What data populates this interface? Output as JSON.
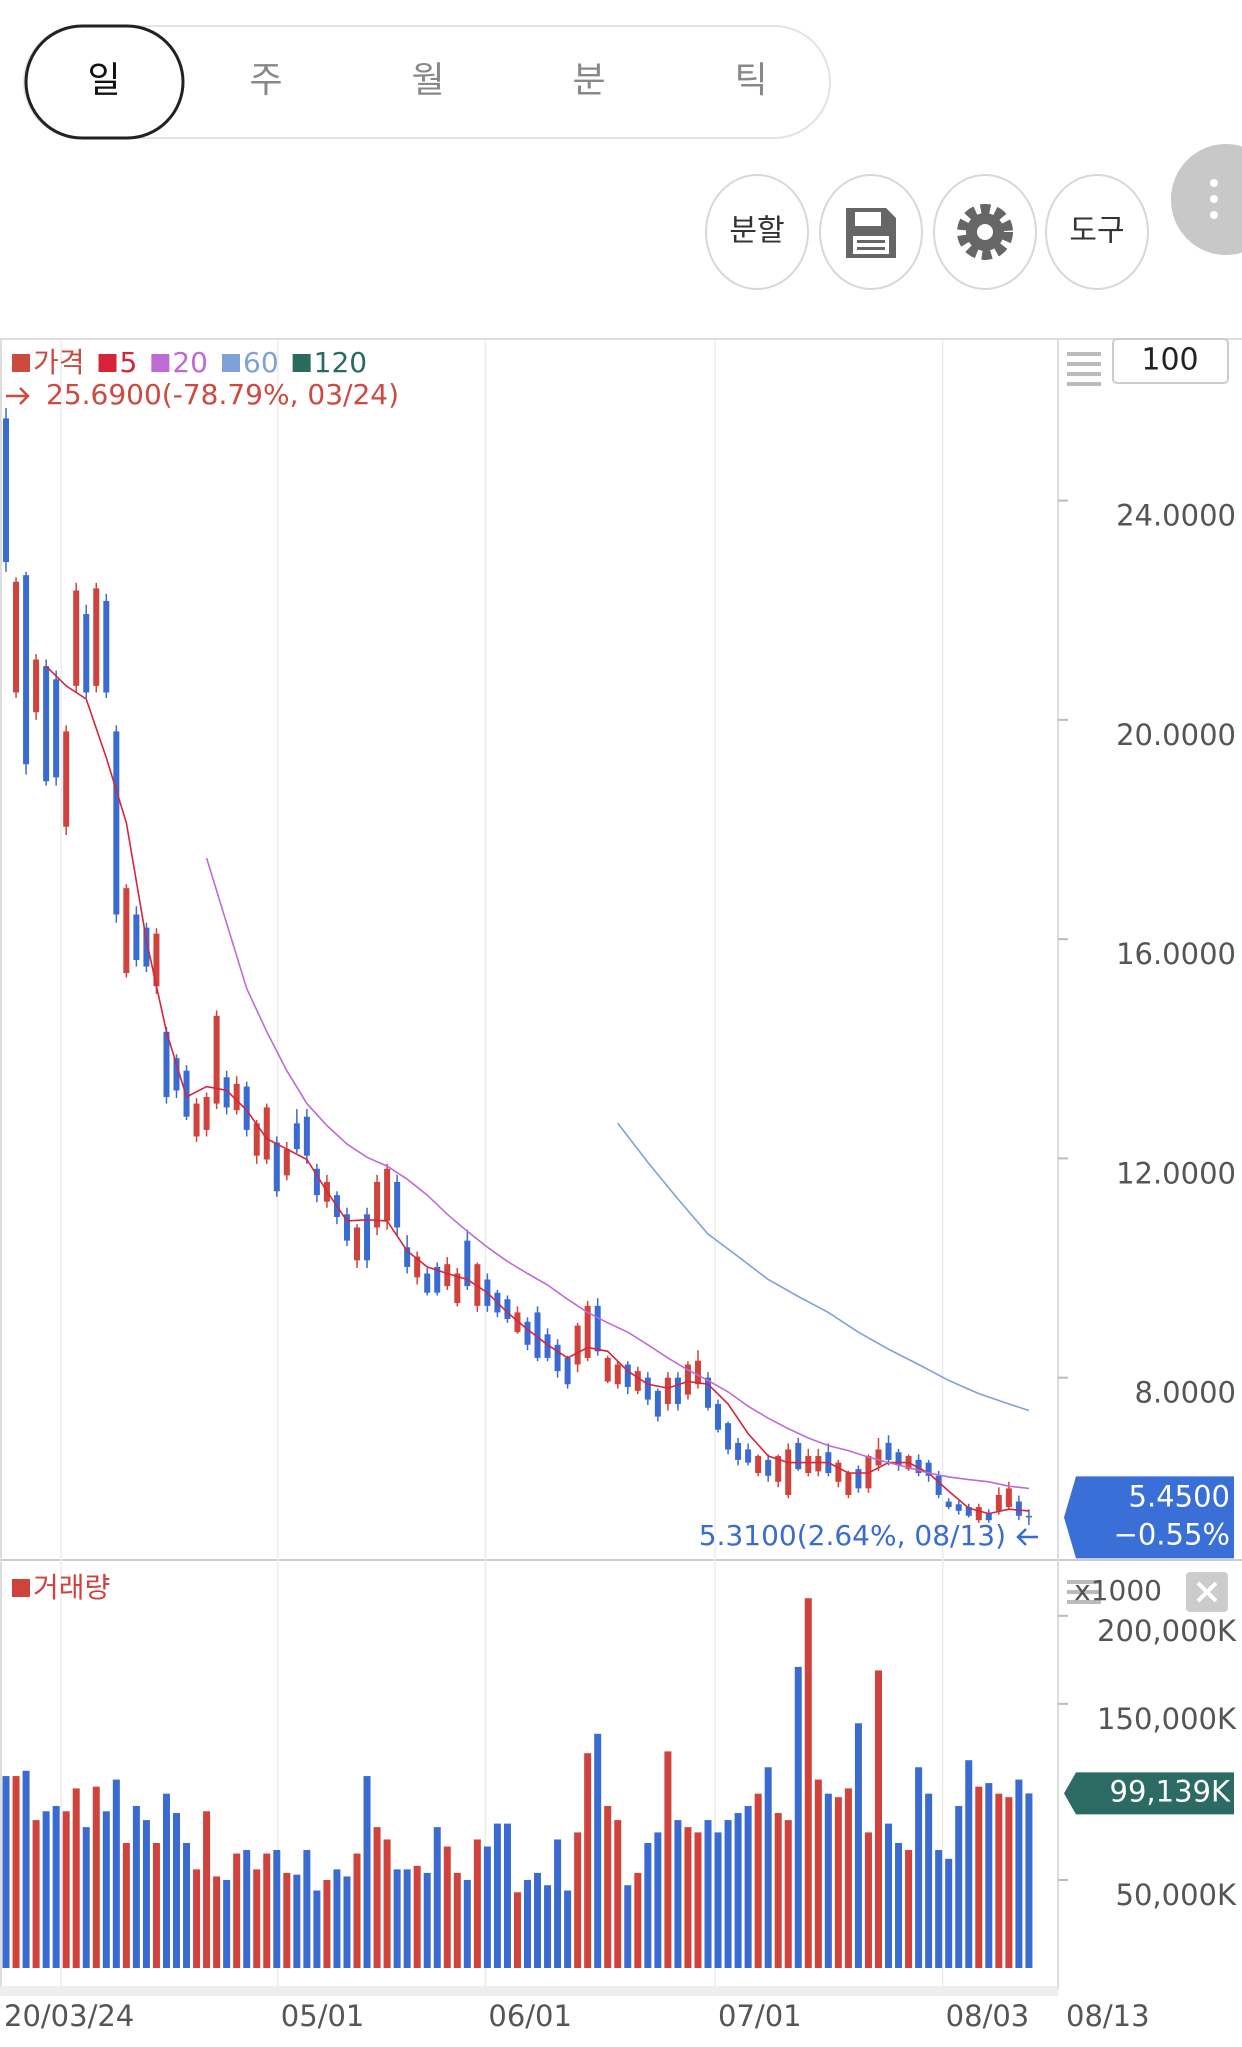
{
  "tabs": [
    "일",
    "주",
    "월",
    "분",
    "틱"
  ],
  "buttons": [
    "분할",
    "도구"
  ],
  "zoom_box": "100",
  "chart_data": [
    {
      "type": "candlestick",
      "series_name": "가격",
      "price_color": "#cc4a3f",
      "up_color": "#d0433c",
      "down_color": "#3a6bd1",
      "annotations": [
        "25.6900(-78.79%, 03/24)",
        "5.3100(2.64%, 08/13)"
      ],
      "current_price": {
        "value": 5.45,
        "label": "5.4500"
      },
      "current_change": "−0.55%",
      "current_color": "#3a6fd8",
      "xlim": [
        -0.6,
        104.9
      ],
      "ylim": [
        4.71,
        26.93
      ],
      "yticks": [
        {
          "value": 8,
          "label": "8.0000"
        },
        {
          "value": 12,
          "label": "12.0000"
        },
        {
          "value": 16,
          "label": "16.0000"
        },
        {
          "value": 20,
          "label": "20.0000"
        },
        {
          "value": 24,
          "label": "24.0000"
        }
      ],
      "ohlc": [
        [
          25.5,
          25.69,
          22.7,
          22.88
        ],
        [
          20.5,
          22.6,
          20.4,
          22.52
        ],
        [
          22.64,
          22.7,
          19.0,
          19.19
        ],
        [
          20.14,
          21.2,
          20.0,
          21.1
        ],
        [
          20.98,
          21.1,
          18.8,
          18.88
        ],
        [
          20.74,
          20.9,
          18.8,
          18.95
        ],
        [
          18.05,
          19.9,
          17.9,
          19.79
        ],
        [
          20.62,
          22.5,
          20.5,
          22.36
        ],
        [
          21.93,
          22.1,
          20.4,
          20.5
        ],
        [
          20.62,
          22.5,
          20.5,
          22.4
        ],
        [
          22.17,
          22.3,
          20.4,
          20.5
        ],
        [
          19.79,
          19.9,
          16.3,
          16.45
        ],
        [
          15.38,
          17.0,
          15.3,
          16.93
        ],
        [
          16.45,
          16.6,
          15.5,
          15.62
        ],
        [
          16.21,
          16.3,
          15.4,
          15.5
        ],
        [
          15.14,
          16.2,
          15.0,
          16.1
        ],
        [
          14.31,
          14.4,
          13.0,
          13.12
        ],
        [
          13.83,
          13.9,
          13.1,
          13.24
        ],
        [
          13.6,
          13.7,
          12.7,
          12.76
        ],
        [
          12.4,
          13.1,
          12.3,
          13.0
        ],
        [
          12.52,
          13.2,
          12.4,
          13.12
        ],
        [
          13.0,
          14.7,
          12.9,
          14.6
        ],
        [
          13.48,
          13.6,
          12.8,
          12.93
        ],
        [
          12.88,
          13.5,
          12.8,
          13.36
        ],
        [
          13.31,
          13.4,
          12.4,
          12.52
        ],
        [
          12.05,
          12.7,
          11.9,
          12.64
        ],
        [
          11.98,
          13.0,
          11.9,
          12.93
        ],
        [
          12.29,
          12.4,
          11.3,
          11.4
        ],
        [
          11.69,
          12.3,
          11.6,
          12.17
        ],
        [
          12.64,
          12.9,
          12.1,
          12.17
        ],
        [
          12.76,
          12.9,
          11.9,
          12.05
        ],
        [
          11.81,
          11.9,
          11.2,
          11.33
        ],
        [
          11.21,
          11.7,
          11.1,
          11.57
        ],
        [
          11.33,
          11.4,
          10.8,
          10.93
        ],
        [
          10.98,
          11.1,
          10.4,
          10.5
        ],
        [
          10.14,
          10.8,
          10.0,
          10.74
        ],
        [
          10.98,
          11.1,
          10.0,
          10.14
        ],
        [
          10.74,
          11.7,
          10.6,
          11.57
        ],
        [
          10.86,
          11.9,
          10.7,
          11.81
        ],
        [
          11.57,
          11.7,
          10.6,
          10.74
        ],
        [
          10.38,
          10.6,
          9.9,
          10.02
        ],
        [
          9.83,
          10.3,
          9.7,
          10.21
        ],
        [
          9.9,
          10.0,
          9.5,
          9.55
        ],
        [
          10.02,
          10.1,
          9.5,
          9.55
        ],
        [
          9.67,
          10.2,
          9.6,
          10.07
        ],
        [
          9.36,
          10.0,
          9.3,
          9.9
        ],
        [
          10.5,
          10.7,
          9.6,
          9.67
        ],
        [
          9.31,
          10.1,
          9.2,
          10.07
        ],
        [
          9.79,
          9.9,
          9.2,
          9.31
        ],
        [
          9.55,
          9.6,
          9.1,
          9.19
        ],
        [
          9.43,
          9.5,
          9.0,
          9.07
        ],
        [
          8.83,
          9.3,
          8.8,
          9.19
        ],
        [
          9.02,
          9.1,
          8.5,
          8.6
        ],
        [
          9.19,
          9.3,
          8.3,
          8.36
        ],
        [
          8.79,
          8.9,
          8.3,
          8.36
        ],
        [
          8.6,
          8.7,
          8.0,
          8.12
        ],
        [
          8.36,
          8.4,
          7.8,
          7.88
        ],
        [
          8.24,
          9.0,
          8.1,
          8.95
        ],
        [
          8.36,
          9.4,
          8.3,
          9.31
        ],
        [
          9.31,
          9.45,
          8.4,
          8.48
        ],
        [
          7.93,
          8.4,
          7.9,
          8.36
        ],
        [
          7.88,
          8.3,
          7.8,
          8.24
        ],
        [
          8.24,
          8.3,
          7.7,
          7.83
        ],
        [
          7.76,
          8.2,
          7.7,
          8.12
        ],
        [
          8.0,
          8.1,
          7.5,
          7.6
        ],
        [
          7.76,
          7.8,
          7.2,
          7.29
        ],
        [
          7.52,
          8.1,
          7.4,
          8.0
        ],
        [
          8.0,
          8.1,
          7.4,
          7.52
        ],
        [
          7.69,
          8.3,
          7.6,
          8.24
        ],
        [
          7.88,
          8.5,
          7.8,
          8.31
        ],
        [
          8.0,
          8.1,
          7.4,
          7.45
        ],
        [
          7.52,
          7.6,
          7.0,
          7.05
        ],
        [
          7.17,
          7.2,
          6.6,
          6.69
        ],
        [
          6.81,
          6.9,
          6.4,
          6.5
        ],
        [
          6.69,
          6.8,
          6.4,
          6.45
        ],
        [
          6.26,
          6.6,
          6.2,
          6.57
        ],
        [
          6.5,
          6.6,
          6.1,
          6.21
        ],
        [
          6.1,
          6.6,
          6.0,
          6.57
        ],
        [
          5.86,
          6.8,
          5.8,
          6.69
        ],
        [
          6.81,
          6.9,
          6.3,
          6.33
        ],
        [
          6.26,
          6.7,
          6.2,
          6.57
        ],
        [
          6.29,
          6.7,
          6.2,
          6.57
        ],
        [
          6.64,
          6.8,
          6.2,
          6.26
        ],
        [
          6.1,
          6.5,
          6.0,
          6.45
        ],
        [
          5.86,
          6.3,
          5.8,
          6.26
        ],
        [
          6.33,
          6.4,
          5.9,
          5.98
        ],
        [
          5.98,
          6.6,
          5.9,
          6.57
        ],
        [
          6.4,
          6.9,
          6.3,
          6.69
        ],
        [
          6.81,
          6.95,
          6.4,
          6.5
        ],
        [
          6.64,
          6.7,
          6.3,
          6.4
        ],
        [
          6.33,
          6.6,
          6.3,
          6.57
        ],
        [
          6.5,
          6.6,
          6.2,
          6.26
        ],
        [
          6.45,
          6.5,
          6.1,
          6.21
        ],
        [
          6.21,
          6.3,
          5.8,
          5.86
        ],
        [
          5.74,
          5.8,
          5.6,
          5.64
        ],
        [
          5.69,
          5.75,
          5.5,
          5.57
        ],
        [
          5.64,
          5.7,
          5.45,
          5.48
        ],
        [
          5.4,
          5.7,
          5.35,
          5.64
        ],
        [
          5.52,
          5.6,
          5.35,
          5.4
        ],
        [
          5.57,
          6.0,
          5.5,
          5.86
        ],
        [
          5.64,
          6.1,
          5.6,
          5.98
        ],
        [
          5.74,
          5.85,
          5.4,
          5.48
        ],
        [
          5.48,
          5.6,
          5.31,
          5.45
        ]
      ],
      "series": [
        {
          "name": "5",
          "color": "#d8243b",
          "x": [
            4,
            6,
            8,
            10,
            12,
            14,
            16,
            18,
            20,
            22,
            24,
            26,
            28,
            30,
            32,
            34,
            36,
            38,
            40,
            42,
            44,
            46,
            48,
            50,
            52,
            54,
            56,
            58,
            60,
            62,
            64,
            66,
            68,
            70,
            72,
            74,
            76,
            78,
            80,
            82,
            84,
            86,
            88,
            90,
            92,
            94,
            96,
            98,
            100,
            102
          ],
          "values": [
            20.98,
            20.62,
            20.38,
            19.31,
            18.12,
            15.98,
            14.31,
            13.12,
            13.31,
            13.24,
            12.88,
            12.36,
            12.17,
            11.98,
            11.4,
            10.86,
            10.88,
            10.86,
            10.31,
            10.02,
            9.9,
            9.79,
            9.55,
            9.19,
            8.88,
            8.6,
            8.36,
            8.55,
            8.48,
            8.12,
            7.88,
            7.81,
            7.93,
            7.88,
            7.52,
            6.98,
            6.57,
            6.45,
            6.45,
            6.45,
            6.26,
            6.26,
            6.45,
            6.45,
            6.26,
            5.93,
            5.62,
            5.52,
            5.6,
            5.57
          ]
        },
        {
          "name": "20",
          "color": "#c06ad6",
          "x": [
            20,
            22,
            24,
            26,
            28,
            30,
            32,
            34,
            36,
            38,
            40,
            42,
            44,
            46,
            48,
            50,
            52,
            54,
            56,
            58,
            60,
            62,
            64,
            66,
            68,
            70,
            72,
            74,
            76,
            78,
            80,
            82,
            84,
            86,
            88,
            90,
            92,
            94,
            96,
            98,
            100,
            102
          ],
          "values": [
            17.48,
            16.29,
            15.1,
            14.31,
            13.6,
            13.0,
            12.6,
            12.26,
            12.02,
            11.86,
            11.62,
            11.33,
            10.98,
            10.67,
            10.38,
            10.12,
            9.9,
            9.69,
            9.43,
            9.19,
            9.0,
            8.83,
            8.6,
            8.36,
            8.14,
            7.95,
            7.74,
            7.48,
            7.26,
            7.07,
            6.9,
            6.76,
            6.67,
            6.55,
            6.45,
            6.36,
            6.26,
            6.19,
            6.14,
            6.1,
            6.02,
            5.98
          ]
        },
        {
          "name": "60",
          "color": "#7ea2d8",
          "x": [
            61,
            64,
            67,
            70,
            73,
            76,
            79,
            82,
            85,
            88,
            91,
            94,
            97,
            100,
            102
          ],
          "values": [
            12.64,
            11.93,
            11.26,
            10.62,
            10.21,
            9.79,
            9.48,
            9.19,
            8.83,
            8.52,
            8.24,
            7.95,
            7.71,
            7.52,
            7.4
          ]
        },
        {
          "name": "120",
          "color": "#2b6b5f",
          "x": [],
          "values": []
        }
      ]
    },
    {
      "type": "bar",
      "title": "거래량",
      "color": "#d0433c",
      "unit_label": "x1000",
      "xlim": [
        -0.6,
        104.9
      ],
      "ylim": [
        0,
        230000
      ],
      "yticks": [
        {
          "value": 50000,
          "label": "50,000K"
        },
        {
          "value": 150000,
          "label": "150,000K"
        },
        {
          "value": 200000,
          "label": "200,000K"
        }
      ],
      "xticks": [
        {
          "value": 5.5,
          "label": "20/03/24"
        },
        {
          "value": 27.1,
          "label": "05/01"
        },
        {
          "value": 47.8,
          "label": "06/01"
        },
        {
          "value": 70.7,
          "label": "07/01"
        },
        {
          "value": 93.4,
          "label": "08/03"
        }
      ],
      "last_date": "08/13",
      "current_value": {
        "value": 99139,
        "label": "99,139K"
      },
      "current_color": "#2b6b63",
      "values": [
        109000,
        109000,
        112000,
        84000,
        89000,
        92000,
        89000,
        102000,
        80000,
        103000,
        89000,
        107000,
        71000,
        92000,
        84000,
        71000,
        99000,
        88000,
        71000,
        56000,
        89000,
        52000,
        50000,
        65000,
        67000,
        56000,
        65000,
        67000,
        54000,
        53000,
        67000,
        44000,
        50000,
        56000,
        52000,
        65000,
        109000,
        80000,
        73000,
        56000,
        56000,
        58000,
        54000,
        80000,
        69000,
        54000,
        50000,
        73000,
        69000,
        82000,
        82000,
        43000,
        50000,
        54000,
        47000,
        73000,
        44000,
        77000,
        122000,
        133000,
        92000,
        84000,
        47000,
        54000,
        71000,
        77000,
        123000,
        84000,
        80000,
        77000,
        84000,
        77000,
        84000,
        88000,
        92000,
        99000,
        114000,
        88000,
        84000,
        171000,
        210000,
        107000,
        99000,
        97000,
        102000,
        139000,
        77000,
        169000,
        82000,
        71000,
        67000,
        114000,
        99000,
        67000,
        62000,
        92000,
        118000,
        103000,
        105000,
        99000,
        97000,
        107000,
        99139
      ]
    }
  ]
}
